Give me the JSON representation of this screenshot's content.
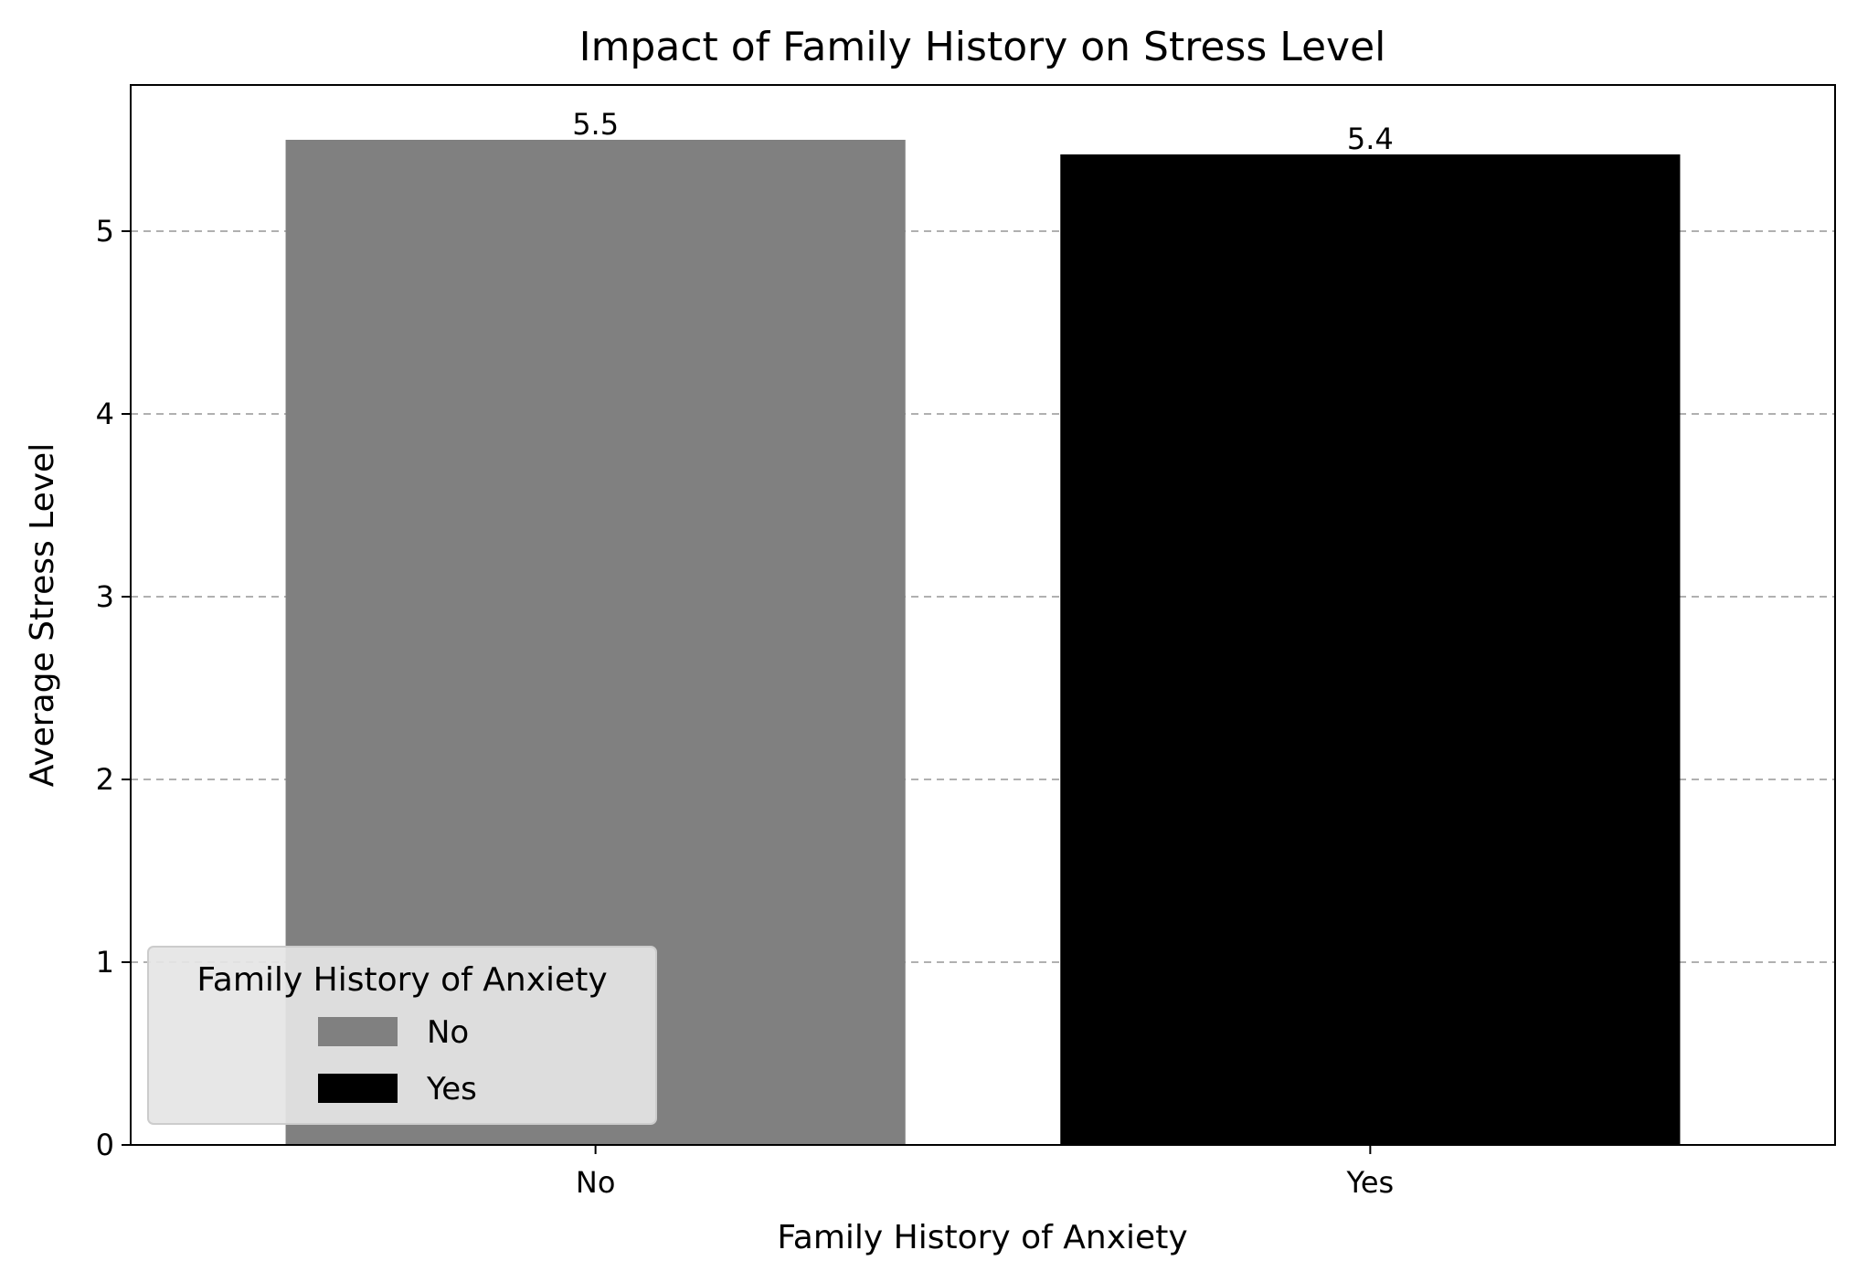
{
  "chart_data": {
    "type": "bar",
    "title": "Impact of Family History on Stress Level",
    "xlabel": "Family History of Anxiety",
    "ylabel": "Average Stress Level",
    "categories": [
      "No",
      "Yes"
    ],
    "values": [
      5.5,
      5.42
    ],
    "data_labels": [
      "5.5",
      "5.4"
    ],
    "colors": [
      "#808080",
      "#000000"
    ],
    "ylim": [
      0,
      5.8
    ],
    "yticks": [
      0,
      1,
      2,
      3,
      4,
      5
    ],
    "grid": {
      "axis": "y",
      "style": "dashed",
      "color": "#b0b0b0"
    },
    "legend": {
      "title": "Family History of Anxiety",
      "placement": "lower-left",
      "entries": [
        {
          "label": "No",
          "color": "#808080"
        },
        {
          "label": "Yes",
          "color": "#000000"
        }
      ]
    }
  }
}
